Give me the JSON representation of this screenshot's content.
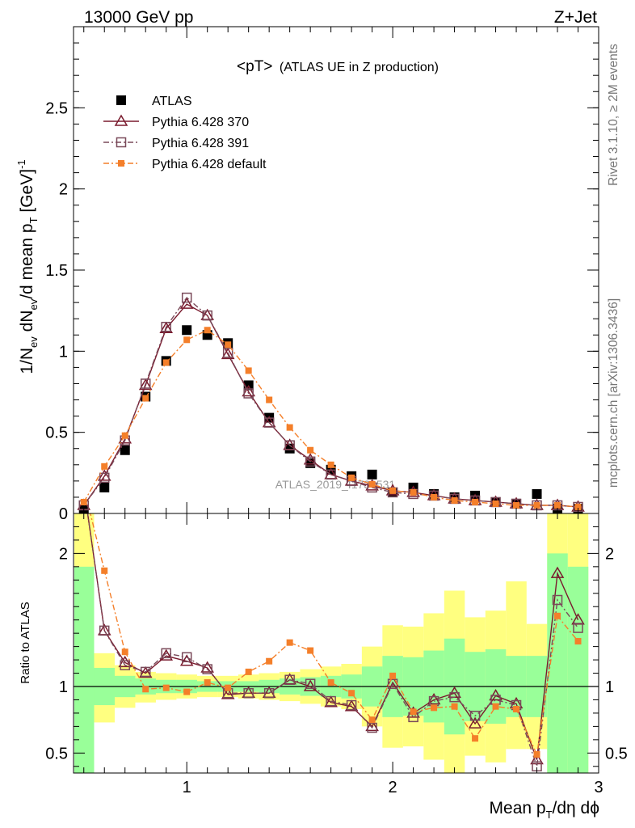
{
  "header": {
    "left": "13000 GeV pp",
    "right": "Z+Jet"
  },
  "side_labels": {
    "rivet": "Rivet 3.1.10, ≥ 2M events",
    "mcplots": "mcplots.cern.ch [arXiv:1306.3436]"
  },
  "chart_data": [
    {
      "type": "line",
      "title_main": "<pT>",
      "title_sub": "(ATLAS UE in Z production)",
      "watermark": "ATLAS_2019_I1736531",
      "ylabel": "1/N",
      "ylabel_sub1": "ev",
      "ylabel_mid": " dN",
      "ylabel_sub2": "ev",
      "ylabel_mid2": "/d mean p",
      "ylabel_sub3": "T",
      "ylabel_unit": " [GeV]",
      "ylabel_sup": "-1",
      "xlim": [
        0.45,
        3.0
      ],
      "ylim": [
        0.0,
        3.0
      ],
      "yticks": [
        0,
        0.5,
        1,
        1.5,
        2,
        2.5
      ],
      "ytick_labels": [
        "0",
        "0.5",
        "1",
        "1.5",
        "2",
        "2.5"
      ],
      "legend_position": "top-left",
      "x": [
        0.5,
        0.6,
        0.7,
        0.8,
        0.9,
        1.0,
        1.1,
        1.2,
        1.3,
        1.4,
        1.5,
        1.6,
        1.7,
        1.8,
        1.9,
        2.0,
        2.1,
        2.2,
        2.3,
        2.4,
        2.5,
        2.6,
        2.7,
        2.8,
        2.9
      ],
      "series": [
        {
          "name": "ATLAS",
          "color": "#000000",
          "marker": "square-filled",
          "values": [
            0.02,
            0.16,
            0.39,
            0.72,
            0.94,
            1.13,
            1.1,
            1.05,
            0.79,
            0.59,
            0.4,
            0.31,
            0.27,
            0.23,
            0.24,
            0.13,
            0.16,
            0.12,
            0.1,
            0.11,
            0.07,
            0.06,
            0.12,
            0.03,
            0.03
          ]
        },
        {
          "name": "Pythia 6.428 370",
          "color": "#7a1b2e",
          "marker": "triangle-open",
          "linestyle": "solid",
          "values": [
            0.05,
            0.23,
            0.46,
            0.79,
            1.14,
            1.29,
            1.22,
            0.98,
            0.75,
            0.56,
            0.42,
            0.33,
            0.24,
            0.2,
            0.17,
            0.14,
            0.13,
            0.11,
            0.09,
            0.08,
            0.07,
            0.06,
            0.05,
            0.05,
            0.04
          ]
        },
        {
          "name": "Pythia 6.428 391",
          "color": "#7a4a5a",
          "marker": "square-open",
          "linestyle": "dashdot",
          "values": [
            0.05,
            0.22,
            0.45,
            0.8,
            1.15,
            1.33,
            1.22,
            0.99,
            0.74,
            0.56,
            0.42,
            0.32,
            0.24,
            0.2,
            0.16,
            0.13,
            0.12,
            0.11,
            0.09,
            0.08,
            0.07,
            0.06,
            0.05,
            0.05,
            0.04
          ]
        },
        {
          "name": "Pythia 6.428 default",
          "color": "#f47f2a",
          "marker": "square-small",
          "linestyle": "dashdot",
          "values": [
            0.07,
            0.29,
            0.48,
            0.71,
            0.93,
            1.07,
            1.13,
            1.04,
            0.88,
            0.7,
            0.53,
            0.39,
            0.3,
            0.22,
            0.18,
            0.14,
            0.13,
            0.1,
            0.08,
            0.07,
            0.06,
            0.05,
            0.05,
            0.05,
            0.04
          ]
        }
      ]
    },
    {
      "type": "line",
      "ylabel": "Ratio to ATLAS",
      "xlabel_main": "Mean p",
      "xlabel_sub": "T",
      "xlabel_rest": "/dη dϕ",
      "xlim": [
        0.45,
        3.0
      ],
      "ylim": [
        0.35,
        2.3
      ],
      "xticks": [
        1,
        2,
        3
      ],
      "xtick_labels": [
        "1",
        "2",
        "3"
      ],
      "yticks": [
        0.5,
        1,
        2
      ],
      "ytick_labels": [
        "0.5",
        "1",
        "2"
      ],
      "reference_line": 1,
      "bins": [
        0.45,
        0.55,
        0.65,
        0.75,
        0.85,
        0.95,
        1.05,
        1.15,
        1.25,
        1.35,
        1.45,
        1.55,
        1.65,
        1.75,
        1.85,
        1.95,
        2.05,
        2.15,
        2.25,
        2.35,
        2.45,
        2.55,
        2.65,
        2.75,
        2.85,
        2.95
      ],
      "band_yellow": {
        "color": "#ffff80",
        "low": [
          0.0,
          0.73,
          0.84,
          0.88,
          0.9,
          0.91,
          0.92,
          0.92,
          0.91,
          0.9,
          0.89,
          0.87,
          0.85,
          0.83,
          0.7,
          0.54,
          0.55,
          0.45,
          0.28,
          0.48,
          0.43,
          0.53,
          0.53,
          0.0,
          0.0
        ],
        "high": [
          3.0,
          1.25,
          1.16,
          1.11,
          1.1,
          1.09,
          1.08,
          1.08,
          1.09,
          1.1,
          1.11,
          1.13,
          1.15,
          1.17,
          1.3,
          1.46,
          1.45,
          1.55,
          1.72,
          1.52,
          1.57,
          1.79,
          1.47,
          3.0,
          3.0
        ]
      },
      "band_green": {
        "color": "#99ff99",
        "low": [
          0.0,
          0.86,
          0.92,
          0.94,
          0.95,
          0.95,
          0.96,
          0.96,
          0.96,
          0.95,
          0.94,
          0.93,
          0.92,
          0.91,
          0.85,
          0.77,
          0.78,
          0.73,
          0.64,
          0.74,
          0.72,
          0.77,
          0.77,
          0.0,
          0.0
        ],
        "high": [
          1.9,
          1.14,
          1.08,
          1.06,
          1.05,
          1.05,
          1.04,
          1.04,
          1.04,
          1.05,
          1.06,
          1.07,
          1.08,
          1.09,
          1.15,
          1.23,
          1.22,
          1.27,
          1.36,
          1.26,
          1.28,
          1.23,
          1.23,
          2.0,
          1.9
        ]
      },
      "x": [
        0.5,
        0.6,
        0.7,
        0.8,
        0.9,
        1.0,
        1.1,
        1.2,
        1.3,
        1.4,
        1.5,
        1.6,
        1.7,
        1.8,
        1.9,
        2.0,
        2.1,
        2.2,
        2.3,
        2.4,
        2.5,
        2.6,
        2.7,
        2.8,
        2.9
      ],
      "series": [
        {
          "name": "Pythia 6.428 370",
          "color": "#7a1b2e",
          "marker": "triangle-open",
          "linestyle": "solid",
          "values": [
            2.6,
            1.42,
            1.18,
            1.1,
            1.23,
            1.19,
            1.14,
            0.94,
            0.95,
            0.95,
            1.05,
            1.0,
            0.88,
            0.85,
            0.7,
            1.03,
            0.8,
            0.9,
            0.95,
            0.72,
            0.93,
            0.87,
            0.45,
            1.85,
            1.5
          ]
        },
        {
          "name": "Pythia 6.428 391",
          "color": "#7a4a5a",
          "marker": "square-open",
          "linestyle": "dashdot",
          "values": [
            2.6,
            1.42,
            1.16,
            1.11,
            1.25,
            1.22,
            1.13,
            0.95,
            0.95,
            0.95,
            1.05,
            1.02,
            0.89,
            0.86,
            0.69,
            1.02,
            0.77,
            0.89,
            0.92,
            0.78,
            0.9,
            0.86,
            0.4,
            1.65,
            1.44
          ]
        },
        {
          "name": "Pythia 6.428 default",
          "color": "#f47f2a",
          "marker": "square-small",
          "linestyle": "dashdot",
          "values": [
            3.0,
            1.87,
            1.26,
            0.98,
            0.99,
            0.96,
            1.03,
            0.99,
            1.11,
            1.19,
            1.33,
            1.27,
            1.03,
            0.95,
            0.75,
            1.08,
            0.81,
            0.84,
            0.85,
            0.61,
            0.85,
            0.83,
            0.49,
            1.53,
            1.34
          ]
        }
      ]
    }
  ]
}
